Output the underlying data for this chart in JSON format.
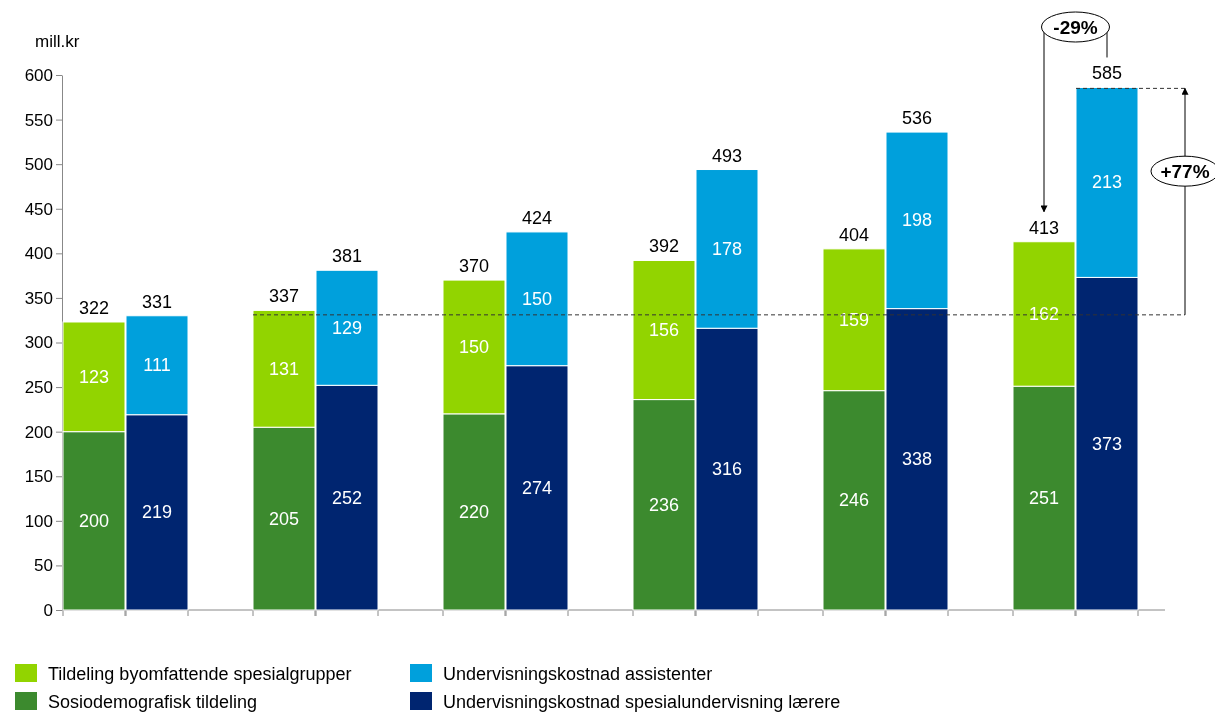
{
  "chart_data": {
    "type": "bar",
    "stacked": true,
    "ylabel": "mill.kr",
    "categories": [
      null,
      null,
      null,
      null,
      null,
      null,
      null,
      null,
      null,
      null,
      null,
      null
    ],
    "series": [
      {
        "name": "Sosiodemografisk tildeling",
        "color": "#3c8a2e",
        "values": [
          200,
          null,
          205,
          null,
          220,
          null,
          236,
          null,
          246,
          null,
          251,
          null
        ]
      },
      {
        "name": "Tildeling byomfattende spesialgrupper",
        "color": "#92d400",
        "values": [
          123,
          null,
          131,
          null,
          150,
          null,
          156,
          null,
          159,
          null,
          162,
          null
        ]
      },
      {
        "name": "Undervisningskostnad spesialundervisning lærere",
        "color": "#002570",
        "values": [
          null,
          219,
          null,
          252,
          null,
          274,
          null,
          316,
          null,
          338,
          null,
          373
        ]
      },
      {
        "name": "Undervisningskostnad assistenter",
        "color": "#00a0dc",
        "values": [
          null,
          111,
          null,
          129,
          null,
          150,
          null,
          178,
          null,
          198,
          null,
          213
        ]
      }
    ],
    "totals": [
      "322",
      "331",
      "337",
      "381",
      "370",
      "424",
      "392",
      "493",
      "404",
      "536",
      "413",
      "585"
    ],
    "data_labels": true,
    "ylim": [
      0,
      600
    ],
    "yticks": [
      0,
      50,
      100,
      150,
      200,
      250,
      300,
      350,
      400,
      450,
      500,
      550,
      600
    ],
    "ref_lines": [
      {
        "axis": "y",
        "value": 331,
        "line_style": "dashed"
      },
      {
        "axis": "y",
        "value": 585,
        "line_style": "dashed"
      }
    ],
    "annotations": [
      "-29%",
      "+77%"
    ],
    "legend": "bottom"
  }
}
